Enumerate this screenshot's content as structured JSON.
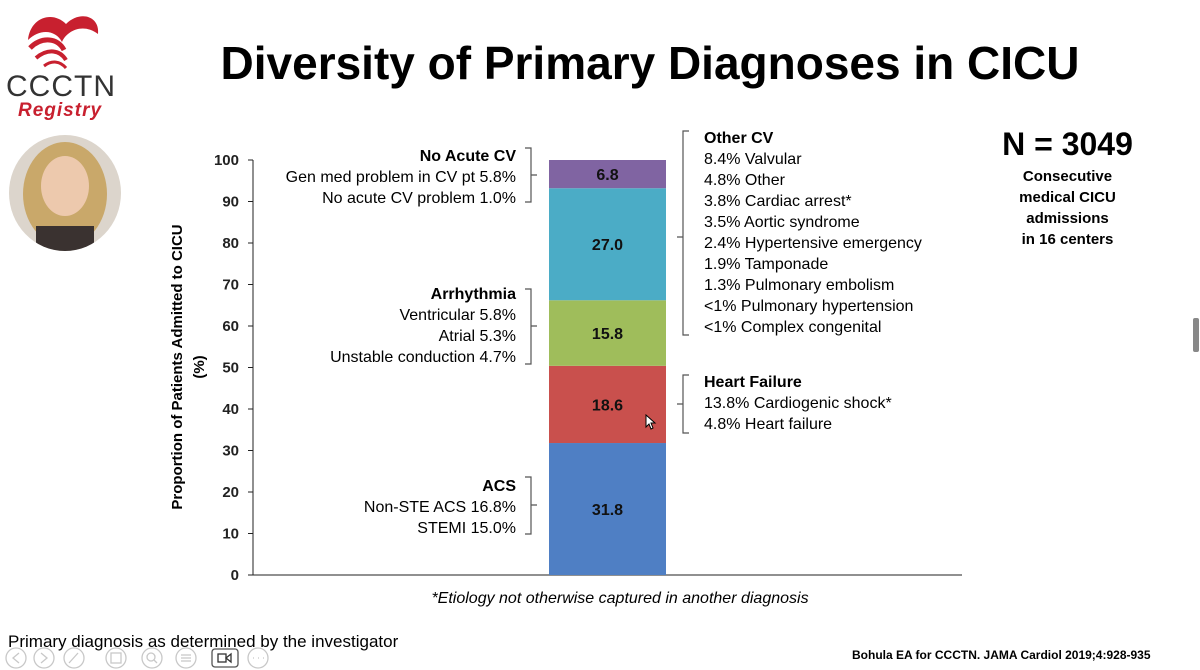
{
  "slide": {
    "title": "Diversity of Primary Diagnoses in CICU",
    "logo_text": "CCCTN",
    "logo_sub": "Registry",
    "n_title": "N = 3049",
    "n_sub": [
      "Consecutive",
      "medical CICU",
      "admissions",
      "in 16 centers"
    ],
    "footnote": "*Etiology not otherwise captured in another diagnosis",
    "primary_note": "Primary diagnosis as determined by the investigator",
    "citation": "Bohula EA for CCCTN. JAMA Cardiol 2019;4:928-935"
  },
  "annotations": {
    "no_acute_cv": {
      "heading": "No Acute CV",
      "lines": [
        "Gen med problem in CV pt 5.8%",
        "No acute CV problem 1.0%"
      ]
    },
    "arrhythmia": {
      "heading": "Arrhythmia",
      "lines": [
        "Ventricular 5.8%",
        "Atrial 5.3%",
        "Unstable conduction 4.7%"
      ]
    },
    "acs": {
      "heading": "ACS",
      "lines": [
        "Non-STE ACS 16.8%",
        "STEMI 15.0%"
      ]
    },
    "other_cv": {
      "heading": "Other CV",
      "lines": [
        "8.4% Valvular",
        "4.8% Other",
        "3.8% Cardiac arrest*",
        "3.5% Aortic syndrome",
        "2.4% Hypertensive emergency",
        "1.9% Tamponade",
        "1.3% Pulmonary embolism",
        "<1% Pulmonary hypertension",
        "<1% Complex congenital"
      ]
    },
    "heart_failure": {
      "heading": "Heart Failure",
      "lines": [
        "13.8% Cardiogenic shock*",
        "4.8% Heart failure"
      ]
    }
  },
  "chart_data": {
    "type": "bar",
    "stacked": true,
    "ylabel": "Proportion of Patients Admitted to CICU (%)",
    "ylim": [
      0,
      100
    ],
    "yticks": [
      0,
      10,
      20,
      30,
      40,
      50,
      60,
      70,
      80,
      90,
      100
    ],
    "grid": false,
    "series": [
      {
        "key": "acs",
        "values": [
          31.8
        ],
        "label": "31.8",
        "color": "#4f7fc4"
      },
      {
        "key": "heart_failure",
        "values": [
          18.6
        ],
        "label": "18.6",
        "color": "#c9504d"
      },
      {
        "key": "arrhythmia",
        "values": [
          15.8
        ],
        "label": "15.8",
        "color": "#9fbd5b"
      },
      {
        "key": "other_cv",
        "values": [
          27.0
        ],
        "label": "27.0",
        "color": "#4bacc6"
      },
      {
        "key": "no_acute_cv",
        "values": [
          6.8
        ],
        "label": "6.8",
        "color": "#8064a2"
      }
    ]
  },
  "colors": {
    "brand_red": "#c8202f"
  },
  "icons": [
    "heart-logo-icon",
    "presenter-photo",
    "mouse-cursor-icon"
  ]
}
